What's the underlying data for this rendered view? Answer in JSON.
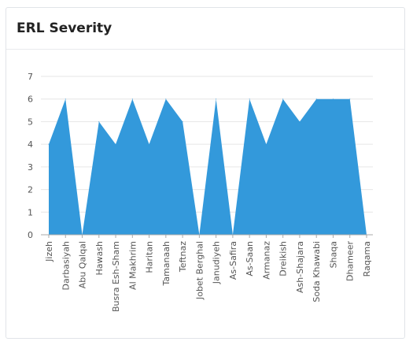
{
  "card": {
    "title": "ERL Severity"
  },
  "chart_data": {
    "type": "area",
    "title": "ERL Severity",
    "xlabel": "",
    "ylabel": "",
    "categories": [
      "Jizeh",
      "Darbasiyah",
      "Abu Qalqal",
      "Hawash",
      "Busra Esh-Sham",
      "Al Makhrim",
      "Haritan",
      "Tamanaah",
      "Teftnaz",
      "Jobet Berghal",
      "Janudiyeh",
      "As-Safira",
      "As-Saan",
      "Armanaz",
      "Dreikish",
      "Ash-Shajara",
      "Soda Khawabi",
      "Shaqa",
      "Dhameer",
      "Raqama"
    ],
    "values": [
      4,
      6,
      0,
      5,
      4,
      6,
      4,
      6,
      5,
      0,
      6,
      0,
      6,
      4,
      6,
      5,
      6,
      6,
      6,
      0
    ],
    "ylim": [
      0,
      7
    ],
    "yticks": [
      0,
      1,
      2,
      3,
      4,
      5,
      6,
      7
    ],
    "grid": true,
    "colors": {
      "fill": "#3399db",
      "grid": "#e6e6e6",
      "axis": "#aaaaaa",
      "text": "#555555"
    }
  }
}
